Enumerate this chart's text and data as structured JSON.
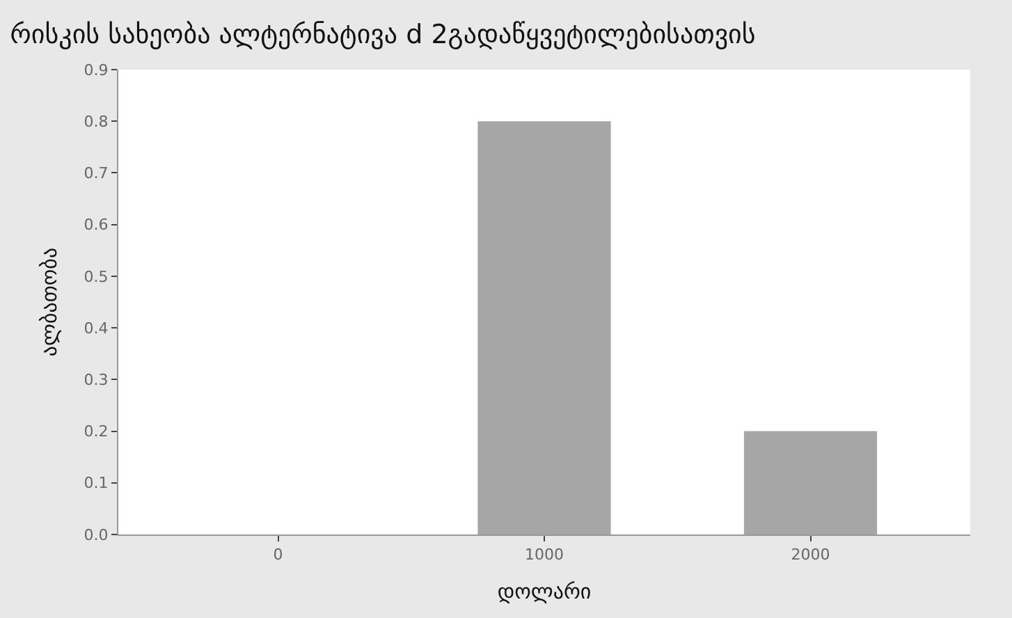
{
  "chart_data": {
    "type": "bar",
    "title": "რისკის სახეობა ალტერნატივა d 2გადაწყვეტილებისათვის",
    "xlabel": "დოლარი",
    "ylabel": "ალბათობა",
    "categories": [
      "0",
      "1000",
      "2000"
    ],
    "values": [
      0,
      0.8,
      0.2
    ],
    "color": "#a6a6a6",
    "ylim": [
      0,
      0.9
    ],
    "yticks": [
      {
        "value": 0,
        "label": "0.0"
      },
      0.1,
      0.2,
      0.3,
      0.4,
      0.5,
      0.6,
      0.7,
      0.8,
      0.9
    ]
  }
}
